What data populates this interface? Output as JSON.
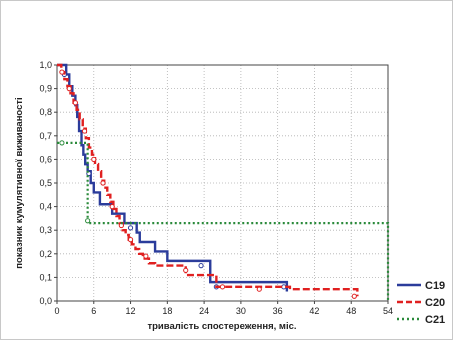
{
  "chart_data": {
    "type": "line",
    "title": "",
    "xlabel": "тривалість спостереження, міс.",
    "ylabel": "показник кумулятивної виживаності",
    "xlim": [
      0,
      54
    ],
    "ylim": [
      0,
      1.0
    ],
    "x_ticks": [
      "0",
      "6",
      "12",
      "18",
      "24",
      "30",
      "36",
      "42",
      "48",
      "54"
    ],
    "y_ticks": [
      "0,0",
      "0,1",
      "0,2",
      "0,3",
      "0,4",
      "0,5",
      "0,6",
      "0,7",
      "0,8",
      "0,9",
      "1,0"
    ],
    "grid": true,
    "legend_position": "bottom-right",
    "series": [
      {
        "name": "C19",
        "color": "#2b3c9b",
        "line_style": "solid",
        "marker": "circle",
        "x": [
          0,
          1.5,
          2,
          2.5,
          3,
          3.3,
          3.6,
          4,
          4.3,
          4.6,
          5,
          5.5,
          6,
          7,
          8,
          9,
          10,
          11,
          12,
          13,
          13.5,
          14,
          16,
          18,
          25,
          37.5
        ],
        "y": [
          1.0,
          0.96,
          0.91,
          0.87,
          0.83,
          0.78,
          0.72,
          0.66,
          0.62,
          0.58,
          0.55,
          0.5,
          0.46,
          0.41,
          0.41,
          0.37,
          0.37,
          0.33,
          0.33,
          0.29,
          0.25,
          0.25,
          0.21,
          0.17,
          0.08,
          0.04
        ],
        "censored": [
          [
            1.2,
            0.96
          ],
          [
            5.2,
            0.54
          ],
          [
            12,
            0.31
          ],
          [
            23.5,
            0.15
          ],
          [
            26,
            0.06
          ],
          [
            37,
            0.06
          ]
        ]
      },
      {
        "name": "C20",
        "color": "#e02020",
        "line_style": "dashed",
        "marker": "circle",
        "x": [
          0,
          0.7,
          1.2,
          1.7,
          2.2,
          2.7,
          3.2,
          3.7,
          4.2,
          4.7,
          5.2,
          5.7,
          6.2,
          6.7,
          7.2,
          7.7,
          8.2,
          8.7,
          9.2,
          9.7,
          10.2,
          10.7,
          11.2,
          11.7,
          12.2,
          12.8,
          13.4,
          14,
          15,
          16,
          17.5,
          20,
          21,
          25,
          26,
          38,
          49
        ],
        "y": [
          1.0,
          0.97,
          0.94,
          0.91,
          0.88,
          0.84,
          0.81,
          0.77,
          0.73,
          0.69,
          0.65,
          0.62,
          0.58,
          0.55,
          0.51,
          0.48,
          0.45,
          0.42,
          0.39,
          0.36,
          0.33,
          0.3,
          0.28,
          0.26,
          0.24,
          0.22,
          0.2,
          0.18,
          0.16,
          0.15,
          0.15,
          0.15,
          0.11,
          0.11,
          0.06,
          0.05,
          0.02
        ],
        "censored": [
          [
            0.8,
            0.97
          ],
          [
            2,
            0.9
          ],
          [
            3,
            0.84
          ],
          [
            4.5,
            0.72
          ],
          [
            6,
            0.6
          ],
          [
            7.5,
            0.5
          ],
          [
            9,
            0.4
          ],
          [
            10.5,
            0.32
          ],
          [
            12,
            0.26
          ],
          [
            14.5,
            0.19
          ],
          [
            21,
            0.13
          ],
          [
            27,
            0.06
          ],
          [
            33,
            0.05
          ],
          [
            48.5,
            0.02
          ]
        ]
      },
      {
        "name": "C21",
        "color": "#2a8a3a",
        "line_style": "dotted",
        "marker": "circle",
        "x": [
          0,
          4,
          5,
          25,
          54
        ],
        "y": [
          0.67,
          0.67,
          0.33,
          0.33,
          0.0
        ],
        "censored": [
          [
            0.8,
            0.67
          ],
          [
            5,
            0.34
          ]
        ]
      }
    ]
  }
}
